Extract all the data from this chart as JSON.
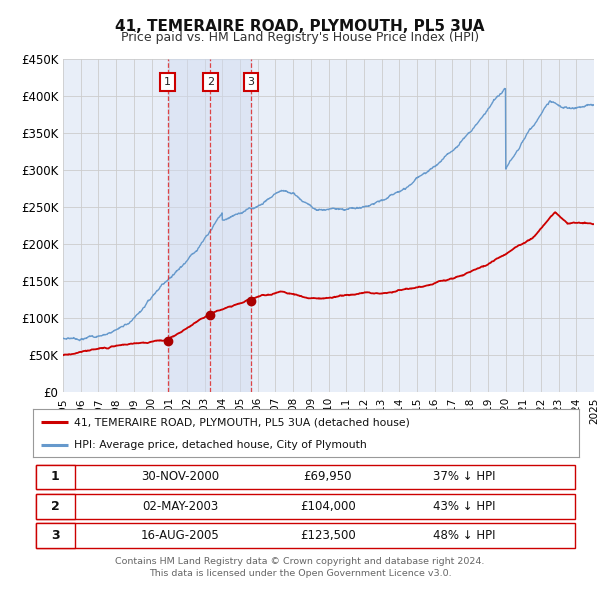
{
  "title": "41, TEMERAIRE ROAD, PLYMOUTH, PL5 3UA",
  "subtitle": "Price paid vs. HM Land Registry's House Price Index (HPI)",
  "ylim": [
    0,
    450000
  ],
  "yticks": [
    0,
    50000,
    100000,
    150000,
    200000,
    250000,
    300000,
    350000,
    400000,
    450000
  ],
  "ytick_labels": [
    "£0",
    "£50K",
    "£100K",
    "£150K",
    "£200K",
    "£250K",
    "£300K",
    "£350K",
    "£400K",
    "£450K"
  ],
  "x_start_year": 1995,
  "x_end_year": 2025,
  "background_color": "#ffffff",
  "plot_bg_color": "#e8eef8",
  "grid_color": "#cccccc",
  "red_line_color": "#cc0000",
  "blue_line_color": "#6699cc",
  "sale_points": [
    {
      "date_num": 2000.92,
      "price": 69950,
      "label": "1"
    },
    {
      "date_num": 2003.33,
      "price": 104000,
      "label": "2"
    },
    {
      "date_num": 2005.62,
      "price": 123500,
      "label": "3"
    }
  ],
  "shade_color": "#d0dcf0",
  "legend_red": "41, TEMERAIRE ROAD, PLYMOUTH, PL5 3UA (detached house)",
  "legend_blue": "HPI: Average price, detached house, City of Plymouth",
  "table_rows": [
    {
      "num": "1",
      "date": "30-NOV-2000",
      "price": "£69,950",
      "hpi": "37% ↓ HPI"
    },
    {
      "num": "2",
      "date": "02-MAY-2003",
      "price": "£104,000",
      "hpi": "43% ↓ HPI"
    },
    {
      "num": "3",
      "date": "16-AUG-2005",
      "price": "£123,500",
      "hpi": "48% ↓ HPI"
    }
  ],
  "footer1": "Contains HM Land Registry data © Crown copyright and database right 2024.",
  "footer2": "This data is licensed under the Open Government Licence v3.0.",
  "dashed_line_color": "#dd3333",
  "marker_color": "#aa0000"
}
